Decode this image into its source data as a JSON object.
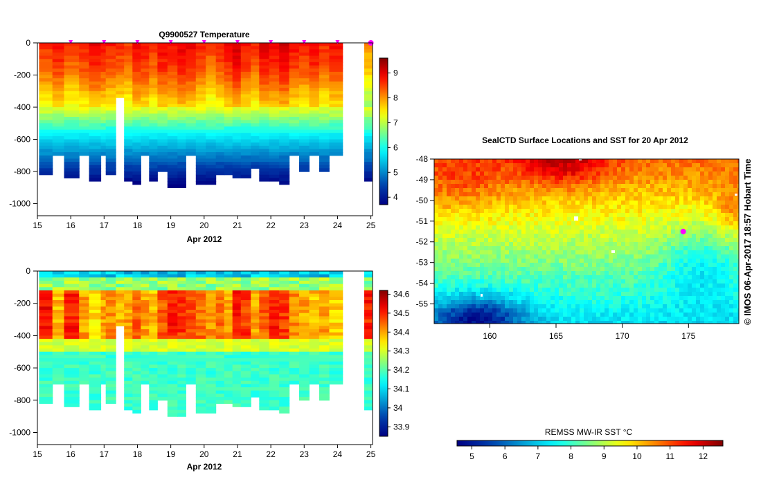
{
  "chart_data": [
    {
      "id": "temperature",
      "type": "heatmap",
      "title": "Q9900527  Temperature",
      "xlabel": "Apr 2012",
      "ylabel": "",
      "x_ticks": [
        "15",
        "16",
        "17",
        "18",
        "19",
        "20",
        "21",
        "22",
        "23",
        "24",
        "25"
      ],
      "xlim": [
        15,
        25.05
      ],
      "y_ticks": [
        "0",
        "-200",
        "-400",
        "-600",
        "-800",
        "-1000"
      ],
      "ylim": [
        -1075,
        0
      ],
      "colorbar": {
        "ticks": [
          "4",
          "5",
          "6",
          "7",
          "8",
          "9"
        ],
        "range": [
          3.7,
          9.6
        ]
      },
      "profile_markers_day": [
        16,
        17,
        18,
        19,
        20,
        21,
        22,
        23,
        24
      ],
      "last_profile_day": 25,
      "profiles": {
        "days": [
          15.05,
          15.45,
          15.8,
          16.25,
          16.55,
          16.9,
          17.05,
          17.35,
          17.6,
          17.85,
          18.1,
          18.35,
          18.6,
          18.9,
          19.2,
          19.45,
          19.75,
          20.05,
          20.35,
          20.6,
          20.85,
          21.1,
          21.4,
          21.65,
          21.95,
          22.25,
          22.55,
          22.85,
          23.15,
          23.45,
          23.75,
          24.8
        ],
        "max_depth": [
          820,
          700,
          840,
          700,
          860,
          700,
          820,
          330,
          850,
          880,
          700,
          860,
          800,
          890,
          890,
          700,
          870,
          880,
          820,
          810,
          840,
          840,
          780,
          850,
          860,
          870,
          700,
          800,
          700,
          800,
          700,
          850
        ],
        "surface_value": [
          8.6,
          8.8,
          8.5,
          8.7,
          8.9,
          8.8,
          8.7,
          8.6,
          8.5,
          8.9,
          8.8,
          8.6,
          8.9,
          8.8,
          9.0,
          8.9,
          8.7,
          8.5,
          8.7,
          8.9,
          9.1,
          8.8,
          8.6,
          9.0,
          8.9,
          9.1,
          8.8,
          8.7,
          8.9,
          8.6,
          8.8,
          8.0
        ]
      }
    },
    {
      "id": "salinity",
      "type": "heatmap",
      "title": "",
      "xlabel": "Apr 2012",
      "ylabel": "",
      "x_ticks": [
        "15",
        "16",
        "17",
        "18",
        "19",
        "20",
        "21",
        "22",
        "23",
        "24",
        "25"
      ],
      "xlim": [
        15,
        25.05
      ],
      "y_ticks": [
        "0",
        "-200",
        "-400",
        "-600",
        "-800",
        "-1000"
      ],
      "ylim": [
        -1075,
        0
      ],
      "colorbar": {
        "ticks": [
          "33.9",
          "34",
          "34.1",
          "34.2",
          "34.3",
          "34.4",
          "34.5",
          "34.6"
        ],
        "range": [
          33.85,
          34.62
        ]
      },
      "profiles": {
        "days": [
          15.05,
          15.45,
          15.8,
          16.25,
          16.55,
          16.9,
          17.05,
          17.35,
          17.6,
          17.85,
          18.1,
          18.35,
          18.6,
          18.9,
          19.2,
          19.45,
          19.75,
          20.05,
          20.35,
          20.6,
          20.85,
          21.1,
          21.4,
          21.65,
          21.95,
          22.25,
          22.55,
          22.85,
          23.15,
          23.45,
          23.75,
          24.8
        ],
        "max_depth": [
          820,
          700,
          840,
          700,
          860,
          700,
          820,
          330,
          850,
          880,
          700,
          860,
          800,
          890,
          890,
          700,
          870,
          880,
          820,
          810,
          840,
          840,
          780,
          850,
          860,
          870,
          700,
          800,
          700,
          800,
          700,
          850
        ],
        "core_value": [
          34.52,
          34.38,
          34.5,
          34.4,
          34.35,
          34.4,
          34.42,
          34.38,
          34.4,
          34.45,
          34.4,
          34.38,
          34.45,
          34.5,
          34.48,
          34.46,
          34.44,
          34.42,
          34.45,
          34.4,
          34.5,
          34.48,
          34.4,
          34.45,
          34.5,
          34.48,
          34.42,
          34.4,
          34.38,
          34.4,
          34.36,
          34.5
        ]
      }
    },
    {
      "id": "sst_map",
      "type": "heatmap",
      "title": "SealCTD Surface Locations and SST for 20 Apr 2012",
      "xlabel": "",
      "ylabel": "",
      "x_ticks": [
        "160",
        "165",
        "170",
        "175"
      ],
      "xlim": [
        155.8,
        178.8
      ],
      "y_ticks": [
        "-48",
        "-49",
        "-50",
        "-51",
        "-52",
        "-53",
        "-54",
        "-55"
      ],
      "ylim": [
        -55.95,
        -48
      ],
      "colorbar": {
        "label": "REMSS MW-IR SST °C",
        "ticks": [
          "5",
          "6",
          "7",
          "8",
          "9",
          "10",
          "11",
          "12"
        ],
        "range": [
          4.55,
          12.6
        ]
      },
      "highlight_location": {
        "lon": 174.6,
        "lat": -51.5
      },
      "credit": "© IMOS 06-Apr-2017 18:57 Hobart Time"
    }
  ],
  "colors": {
    "profile_marker": "#ff00ff",
    "axis": "#000000",
    "island": "#ffffff"
  }
}
